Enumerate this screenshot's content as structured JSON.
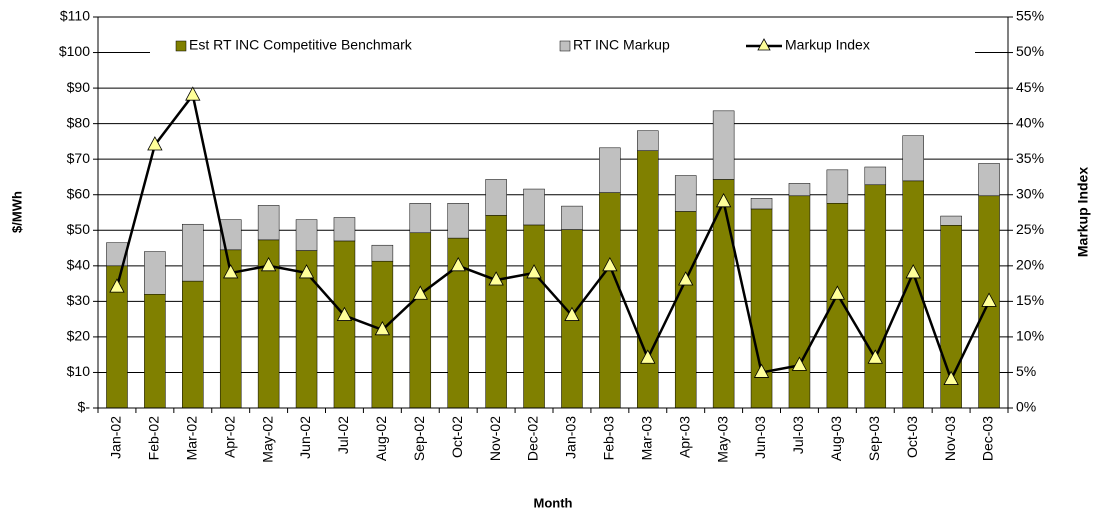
{
  "chart_data": {
    "type": "bar",
    "stacked": true,
    "x_label": "Month",
    "y_label": "$/MWh",
    "y2_label": "Markup Index",
    "categories": [
      "Jan-02",
      "Feb-02",
      "Mar-02",
      "Apr-02",
      "May-02",
      "Jun-02",
      "Jul-02",
      "Aug-02",
      "Sep-02",
      "Oct-02",
      "Nov-02",
      "Dec-02",
      "Jan-03",
      "Feb-03",
      "Mar-03",
      "Apr-03",
      "May-03",
      "Jun-03",
      "Jul-03",
      "Aug-03",
      "Sep-03",
      "Oct-03",
      "Nov-03",
      "Dec-03"
    ],
    "series": [
      {
        "name": "Est RT INC Competitive Benchmark",
        "type": "bar",
        "color": "#808000",
        "values": [
          40,
          32,
          35.7,
          44.5,
          47.3,
          44.3,
          47,
          41.3,
          49.3,
          47.8,
          54.2,
          51.5,
          50.2,
          60.6,
          72.4,
          55.3,
          64.3,
          56,
          59.7,
          57.6,
          62.8,
          63.9,
          51.4,
          59.7
        ]
      },
      {
        "name": "RT INC Markup",
        "type": "bar",
        "color": "#c0c0c0",
        "values": [
          6.5,
          12,
          16,
          8.5,
          9.7,
          8.7,
          6.6,
          4.5,
          8.3,
          9.8,
          10.1,
          10.1,
          6.6,
          12.6,
          5.6,
          10.1,
          19.3,
          3,
          3.5,
          9.4,
          5,
          12.7,
          2.6,
          9.1
        ]
      },
      {
        "name": "Markup Index",
        "type": "line",
        "color": "#000000",
        "marker_color": "#ffff99",
        "axis": "y2",
        "values": [
          17,
          37,
          44,
          19,
          20,
          19,
          13,
          11,
          16,
          20,
          18,
          19,
          13,
          20,
          7,
          18,
          29,
          5,
          6,
          16,
          7,
          19,
          4,
          15
        ]
      }
    ],
    "ylim": [
      0,
      110
    ],
    "yticks": [
      {
        "value": 0,
        "label": "$-"
      },
      {
        "value": 10,
        "label": "$10"
      },
      {
        "value": 20,
        "label": "$20"
      },
      {
        "value": 30,
        "label": "$30"
      },
      {
        "value": 40,
        "label": "$40"
      },
      {
        "value": 50,
        "label": "$50"
      },
      {
        "value": 60,
        "label": "$60"
      },
      {
        "value": 70,
        "label": "$70"
      },
      {
        "value": 80,
        "label": "$80"
      },
      {
        "value": 90,
        "label": "$90"
      },
      {
        "value": 100,
        "label": "$100"
      },
      {
        "value": 110,
        "label": "$110"
      }
    ],
    "y2lim": [
      0,
      55
    ],
    "y2ticks": [
      {
        "value": 0,
        "label": "0%"
      },
      {
        "value": 5,
        "label": "5%"
      },
      {
        "value": 10,
        "label": "10%"
      },
      {
        "value": 15,
        "label": "15%"
      },
      {
        "value": 20,
        "label": "20%"
      },
      {
        "value": 25,
        "label": "25%"
      },
      {
        "value": 30,
        "label": "30%"
      },
      {
        "value": 35,
        "label": "35%"
      },
      {
        "value": 40,
        "label": "40%"
      },
      {
        "value": 45,
        "label": "45%"
      },
      {
        "value": 50,
        "label": "50%"
      },
      {
        "value": 55,
        "label": "55%"
      }
    ],
    "grid": true,
    "legend": "top"
  }
}
